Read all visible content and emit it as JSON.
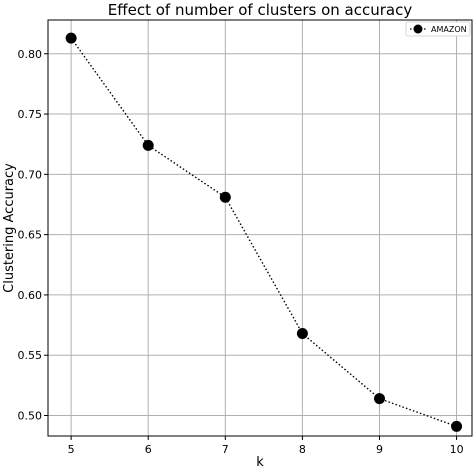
{
  "chart_data": {
    "type": "line",
    "title": "Effect of number of clusters on accuracy",
    "xlabel": "k",
    "ylabel": "Clustering Accuracy",
    "x": [
      5,
      6,
      7,
      8,
      9,
      10
    ],
    "series": [
      {
        "name": "AMAZON",
        "values": [
          0.813,
          0.724,
          0.681,
          0.568,
          0.514,
          0.491
        ]
      }
    ],
    "xlim": [
      4.7,
      10.2
    ],
    "ylim": [
      0.483,
      0.828
    ],
    "xticks": [
      "5",
      "6",
      "7",
      "8",
      "9",
      "10"
    ],
    "yticks": [
      "0.50",
      "0.55",
      "0.60",
      "0.65",
      "0.70",
      "0.75",
      "0.80"
    ],
    "ytick_values": [
      0.5,
      0.55,
      0.6,
      0.65,
      0.7,
      0.75,
      0.8
    ],
    "grid": true,
    "legend": "top-right",
    "line_style": "dotted",
    "marker": "circle",
    "series_color": "#000000",
    "grid_color": "#b0b0b0"
  }
}
